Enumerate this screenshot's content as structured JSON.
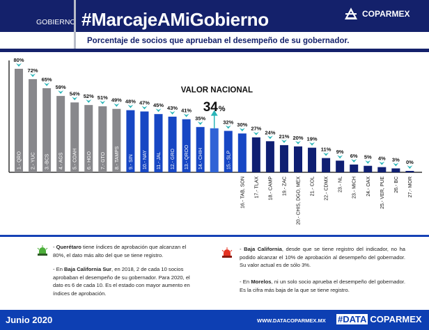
{
  "header": {
    "section": "GOBIERNO",
    "hashtag": "#MarcajeAMiGobierno",
    "brand": "COPARMEX",
    "subtitle": "Porcentaje de socios que aprueban el desempeño de su gobernador."
  },
  "chart_data": {
    "type": "bar",
    "title": "Porcentaje de socios que aprueban el desempeño de su gobernador.",
    "ylim": [
      0,
      80
    ],
    "grid": false,
    "categories": [
      "1.- QRO",
      "2.- YUC",
      "3.-BCS",
      "4.- AGS",
      "5.- COAH",
      "6.- HGO",
      "7.- GTO",
      "8.- TAMPS",
      "9.- SIN",
      "10.- NAY",
      "11.- JAL",
      "12.- GRO",
      "13.- QROO",
      "14.- CHIH",
      "VALOR NACIONAL",
      "15.- SLP",
      "16.- TAB, SON",
      "17.- TLAX",
      "18.- CAMP",
      "19.- ZAC",
      "20.- CHIS, DGO, MEX",
      "21.- COL",
      "22.- CDMX",
      "23.- NL",
      "23.- MICH",
      "24.- OAX",
      "25.- VER, PUE",
      "26.- BC",
      "27.- MOR"
    ],
    "values": [
      80,
      72,
      65,
      59,
      54,
      52,
      51,
      49,
      48,
      47,
      45,
      43,
      41,
      35,
      34,
      32,
      30,
      27,
      24,
      21,
      20,
      19,
      11,
      9,
      6,
      5,
      4,
      3,
      0
    ],
    "groups": [
      "gray",
      "gray",
      "gray",
      "gray",
      "gray",
      "gray",
      "gray",
      "gray",
      "blue",
      "blue",
      "blue",
      "blue",
      "blue",
      "blue",
      "national",
      "blue",
      "blue",
      "navy",
      "navy",
      "navy",
      "navy",
      "navy",
      "navy",
      "navy",
      "navy",
      "navy",
      "navy",
      "navy",
      "navy"
    ],
    "colors": {
      "gray": "#88888c",
      "blue": "#1747c4",
      "national": "#2f63d6",
      "navy": "#0f1f72",
      "marker": "#2ab5b8"
    },
    "national": {
      "label": "VALOR NACIONAL",
      "value": "34",
      "unit": "%"
    }
  },
  "notes": {
    "left": [
      {
        "bold": "Querétaro",
        "text": " tiene índices de aprobación que alcanzan el 80%, el dato más alto del que se tiene registro.",
        "prefix": "- "
      },
      {
        "prefix": "- En ",
        "bold": "Baja California Sur",
        "text": ", en 2018, 2 de cada 10 socios aprobaban el desempeño de su gobernador. Para 2020, el dato es 6 de cada 10. Es el estado con mayor aumento en índices de aprobación."
      }
    ],
    "right": [
      {
        "prefix": "- ",
        "bold": "Baja California",
        "text": ", desde que se tiene registro del indicador, no ha podido alcanzar el 10% de aprobación al desempeño del gobernador. Su valor actual es de sólo 3%."
      },
      {
        "prefix": "- En ",
        "bold": "Morelos",
        "text": ", ni un solo socio aprueba el desempeño del gobernador. Es la cifra más baja de la que se tiene registro."
      }
    ],
    "icons": {
      "left": "green-siren-icon",
      "right": "red-siren-icon"
    }
  },
  "footer": {
    "date": "Junio 2020",
    "url": "WWW.DATACOPARMEX.MX",
    "hash": "#DATA",
    "brand": "COPARMEX"
  }
}
